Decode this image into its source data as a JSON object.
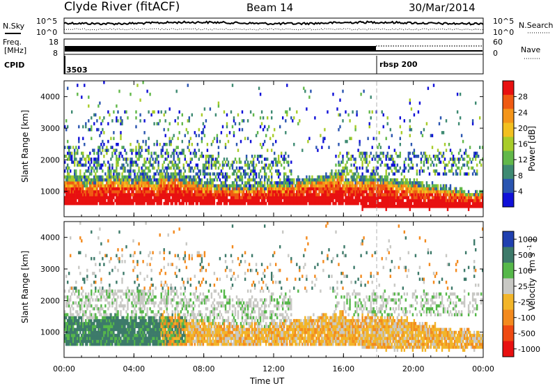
{
  "header": {
    "station": "Clyde River (fitACF)",
    "beam": "Beam 14",
    "date": "30/Mar/2014"
  },
  "top_panels": {
    "nsky": {
      "label": "N.Sky",
      "ticks_right": [
        "10^5",
        "10^0"
      ],
      "ticks_left": [
        "10^5",
        "10^0"
      ]
    },
    "nsearch": {
      "label": "N.Search"
    },
    "freq": {
      "label_line1": "Freq.",
      "label_line2": "[MHz]",
      "ticks_left": [
        "18",
        "8"
      ],
      "ticks_right": [
        "60",
        "0"
      ]
    },
    "nave": {
      "label": "Nave"
    },
    "cpid": {
      "label": "CPID",
      "segments": [
        {
          "name": "3503",
          "start_hour": 0
        },
        {
          "name": "rbsp 200",
          "start_hour": 18
        }
      ]
    }
  },
  "chart_data": [
    {
      "type": "heatmap",
      "name": "power",
      "ylabel": "Slant Range [km]",
      "yticks": [
        "4000",
        "3000",
        "2000",
        "1000"
      ],
      "ytick_values": [
        4000,
        3000,
        2000,
        1000
      ],
      "ylim": [
        200,
        4500
      ],
      "colorbar": {
        "label": "Power [dB]",
        "tick_labels": [
          "28",
          "24",
          "20",
          "16",
          "12",
          "8",
          "4"
        ],
        "range": [
          0,
          32
        ],
        "colors": [
          "#1010d8",
          "#2a55b0",
          "#3e8a72",
          "#62b84a",
          "#a8cc2a",
          "#f2c020",
          "#f4951a",
          "#ef5a12",
          "#e81010"
        ]
      }
    },
    {
      "type": "heatmap",
      "name": "velocity",
      "ylabel": "Slant Range [km]",
      "yticks": [
        "4000",
        "3000",
        "2000",
        "1000"
      ],
      "ytick_values": [
        4000,
        3000,
        2000,
        1000
      ],
      "ylim": [
        200,
        4500
      ],
      "colorbar": {
        "label": "Velocity",
        "units": "[m s",
        "units_sup": "-1",
        "units_end": "]",
        "tick_labels": [
          "1000",
          "500",
          "100",
          "25",
          "-25",
          "-100",
          "-500",
          "-1000"
        ],
        "colors": [
          "#2040b0",
          "#3d7a6a",
          "#56b84a",
          "#c8c8c4",
          "#f2b52a",
          "#f38a1e",
          "#ef4a12",
          "#e81010"
        ]
      }
    }
  ],
  "xaxis": {
    "label": "Time UT",
    "tick_labels": [
      "00:00",
      "04:00",
      "08:00",
      "12:00",
      "16:00",
      "20:00",
      "00:00"
    ],
    "tick_hours": [
      0,
      4,
      8,
      12,
      16,
      20,
      24
    ]
  },
  "marker": {
    "hour": 18
  }
}
